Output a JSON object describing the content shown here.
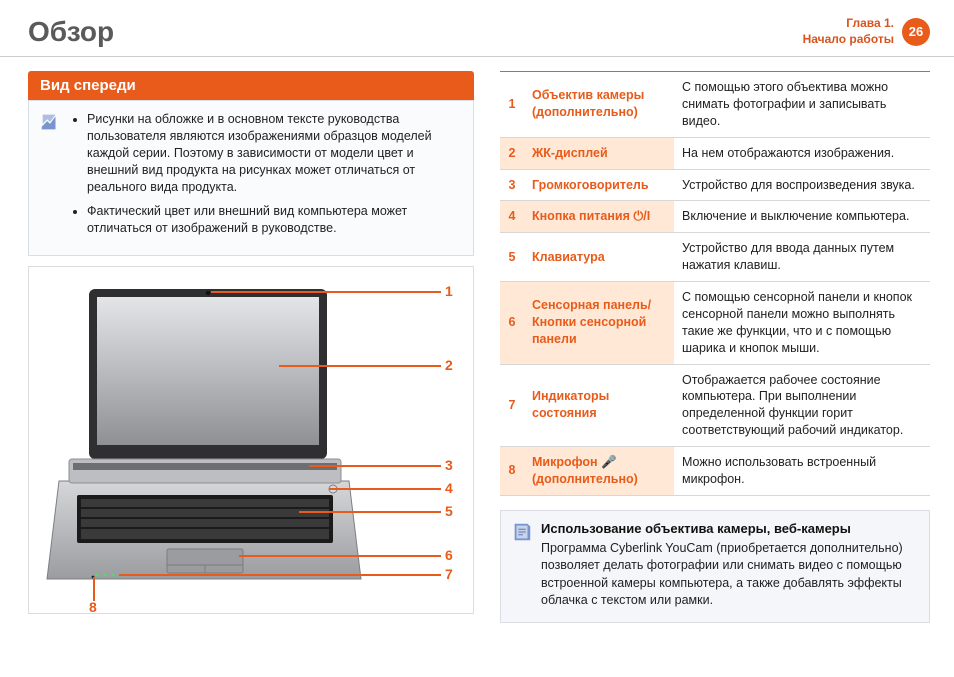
{
  "header": {
    "title": "Обзор",
    "chapter_line1": "Глава 1.",
    "chapter_line2": "Начало работы",
    "page_number": "26"
  },
  "colors": {
    "accent": "#e85b1a",
    "accent_text": "#d9531e",
    "note_border": "#dadde3",
    "note_bg": "#fafbfd",
    "tip_bg": "#f5f6fa",
    "row_tint": "#ffe9d6",
    "divider": "#d7d7d7"
  },
  "section_title": "Вид спереди",
  "notes": [
    "Рисунки на обложке и в основном тексте руководства пользователя являются изображениями образцов моделей каждой серии. Поэтому в зависимости от модели цвет и внешний вид продукта на рисунках может отличаться от реального вида продукта.",
    "Фактический цвет или внешний вид компьютера может отличаться от изображений в руководстве."
  ],
  "callouts": [
    "1",
    "2",
    "3",
    "4",
    "5",
    "6",
    "7",
    "8"
  ],
  "parts": [
    {
      "num": "1",
      "name": "Объектив камеры (дополнительно)",
      "desc": "С помощью этого объектива можно снимать фотографии и записывать видео."
    },
    {
      "num": "2",
      "name": "ЖК-дисплей",
      "desc": "На нем отображаются изображения."
    },
    {
      "num": "3",
      "name": "Громкоговоритель",
      "desc": "Устройство для воспроизведения звука."
    },
    {
      "num": "4",
      "name": "Кнопка питания ⏻/I",
      "desc": "Включение и выключение компьютера."
    },
    {
      "num": "5",
      "name": "Клавиатура",
      "desc": "Устройство для ввода данных путем нажатия клавиш."
    },
    {
      "num": "6",
      "name": "Сенсорная панель/ Кнопки сенсорной панели",
      "desc": "С помощью сенсорной панели и кнопок сенсорной панели можно выполнять такие же функции, что и с помощью шарика и кнопок мыши."
    },
    {
      "num": "7",
      "name": "Индикаторы состояния",
      "desc": "Отображается рабочее состояние компьютера. При выполнении определенной функции горит соответствующий рабочий индикатор."
    },
    {
      "num": "8",
      "name": "Микрофон 🎤 (дополнительно)",
      "desc": "Можно использовать встроенный микрофон."
    }
  ],
  "tip": {
    "title": "Использование объектива камеры, веб-камеры",
    "body": "Программа Cyberlink YouCam (приобретается дополнительно) позволяет делать фотографии или снимать видео с помощью встроенной камеры компьютера, а также добавлять эффекты облачка с текстом или рамки."
  },
  "diagram": {
    "laptop_body_color": "#b7b9bc",
    "laptop_screen_bezel": "#2a2a2a",
    "laptop_screen_bg": "#c2c4c6",
    "keyboard_color": "#1b1b1b",
    "trackpad_color": "#8f9193"
  }
}
